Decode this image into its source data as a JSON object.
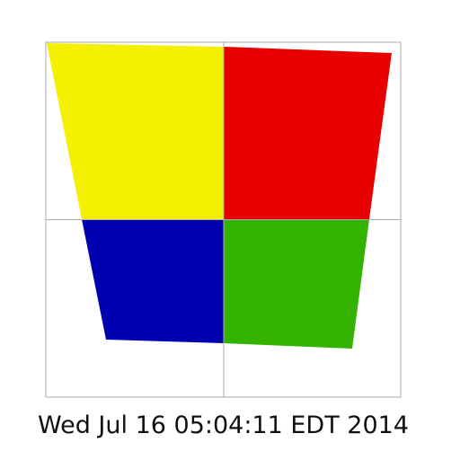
{
  "timestamp": "Wed Jul 16 05:04:11 EDT 2014",
  "colors": {
    "background": "#ffffff",
    "frame": "#aaaaaa",
    "yellow": "#f5f000",
    "red": "#e80000",
    "blue": "#0000b0",
    "green": "#33b200",
    "text": "#111111"
  }
}
